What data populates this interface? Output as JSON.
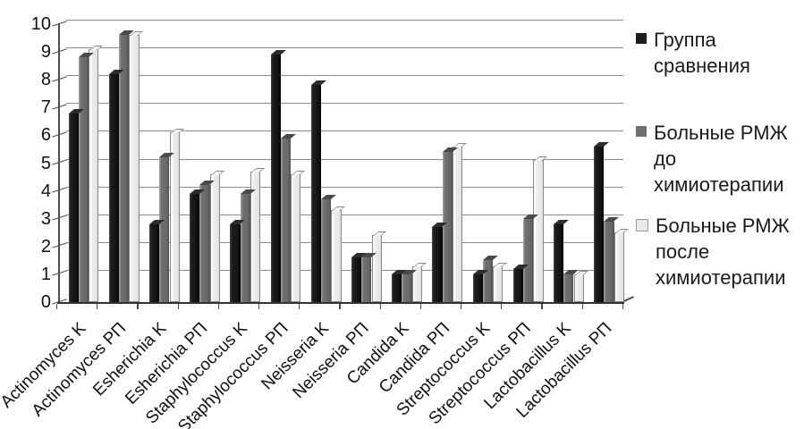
{
  "chart_data": {
    "type": "bar",
    "title": "",
    "xlabel": "",
    "ylabel": "",
    "ylim": [
      0,
      10
    ],
    "yticks": [
      "0",
      "1",
      "2",
      "3",
      "4",
      "5",
      "6",
      "7",
      "8",
      "9",
      "10"
    ],
    "grid": true,
    "legend_position": "right",
    "background": "#ffffff",
    "gridline_color": "#8c8c8c",
    "axis_color": "#4d4d4d",
    "text_color": "#1a1a1a",
    "categories": [
      "Actinomyces K",
      "Actinomyces РП",
      "Esherichia K",
      "Esherichia РП",
      "Staphylococcus K",
      "Staphylococcus РП",
      "Neisseria K",
      "Neisseria РП",
      "Candida K",
      "Candida РП",
      "Streptococcus K",
      "Streptococcus РП",
      "Lactobacillus K",
      "Lactobacillus РП"
    ],
    "series": [
      {
        "name": "Группа сравнения",
        "legend_lines": [
          "Группа",
          "сравнения"
        ],
        "color": "#1c1c1c",
        "values": [
          6.8,
          8.2,
          2.8,
          3.9,
          2.8,
          8.9,
          7.8,
          1.6,
          1.0,
          2.7,
          1.0,
          1.2,
          2.8,
          5.6
        ]
      },
      {
        "name": "Больные РМЖ до химиотерапии",
        "legend_lines": [
          "Больные РМЖ",
          "до",
          "химиотерапии"
        ],
        "color": "#6f6f6f",
        "values": [
          8.8,
          9.6,
          5.2,
          4.2,
          3.9,
          5.9,
          3.7,
          1.6,
          1.0,
          5.4,
          1.5,
          3.0,
          1.0,
          2.9
        ]
      },
      {
        "name": "Больные РМЖ после химиотерапии",
        "legend_lines": [
          "Больные РМЖ",
          "после",
          "химиотерапии"
        ],
        "color": "#e9e9e9",
        "values": [
          9.1,
          9.6,
          6.1,
          4.6,
          4.7,
          4.6,
          3.3,
          2.4,
          1.3,
          5.6,
          1.3,
          5.1,
          1.0,
          2.5
        ]
      }
    ]
  }
}
